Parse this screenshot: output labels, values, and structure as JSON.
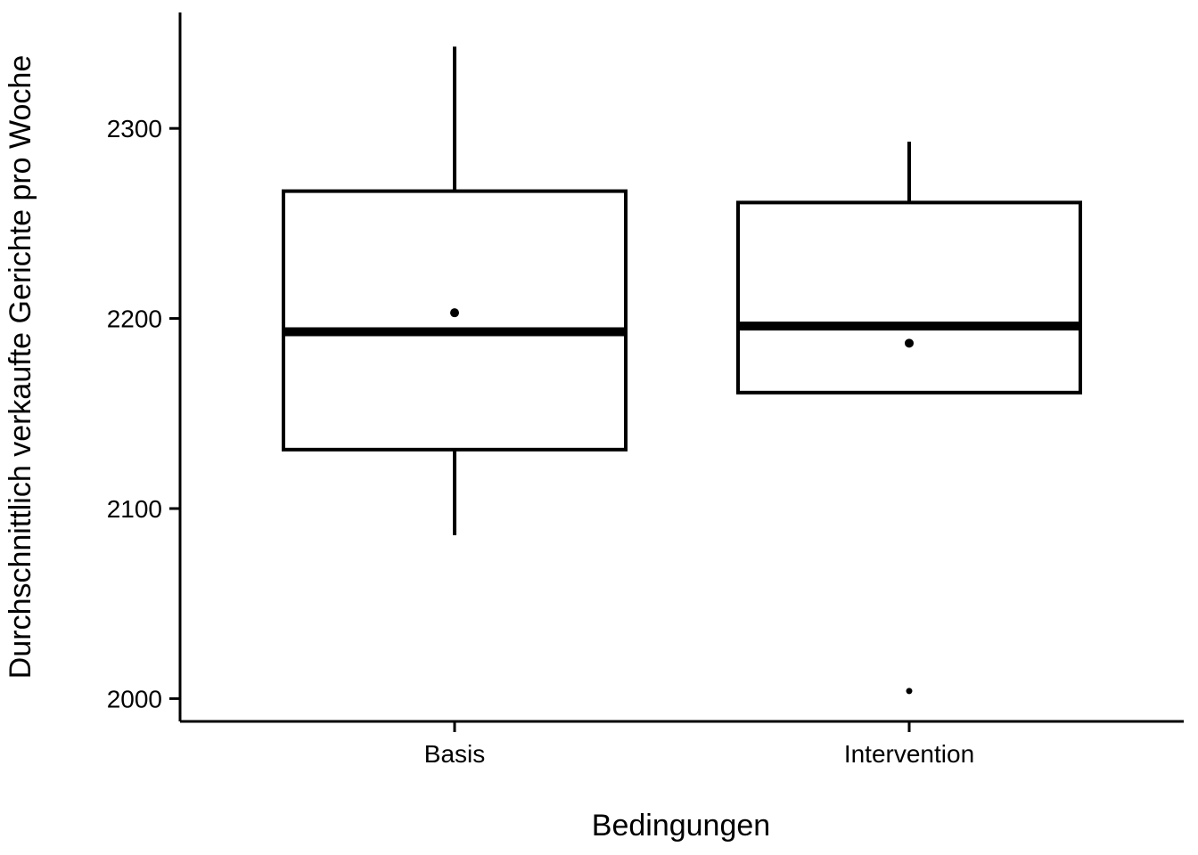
{
  "chart_data": {
    "type": "boxplot",
    "xlabel": "Bedingungen",
    "ylabel": "Durchschnittlich verkaufte Gerichte pro Woche",
    "categories": [
      "Basis",
      "Intervention"
    ],
    "ylim": [
      1988,
      2361
    ],
    "yticks": [
      2000,
      2100,
      2200,
      2300
    ],
    "grid": false,
    "boxes": [
      {
        "category": "Basis",
        "whisker_low": 2086,
        "q1": 2131,
        "median": 2193,
        "q3": 2267,
        "whisker_high": 2343,
        "mean": 2203,
        "outliers": []
      },
      {
        "category": "Intervention",
        "whisker_low": 2161,
        "q1": 2161,
        "median": 2196,
        "q3": 2261,
        "whisker_high": 2293,
        "mean": 2187,
        "outliers": [
          2004
        ]
      }
    ],
    "colors": {
      "stroke": "#000000",
      "fill": "#ffffff"
    }
  }
}
